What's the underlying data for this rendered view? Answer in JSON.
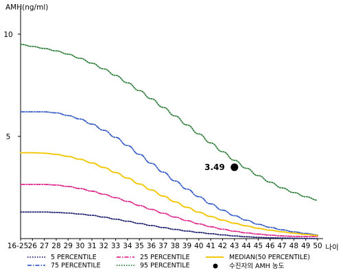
{
  "chart_data": {
    "type": "line",
    "ylabel": "AMH(ng/ml)",
    "xlabel": "나이",
    "x": [
      "16-25",
      "26",
      "27",
      "28",
      "29",
      "30",
      "31",
      "32",
      "33",
      "34",
      "35",
      "36",
      "37",
      "38",
      "39",
      "40",
      "41",
      "42",
      "43",
      "44",
      "45",
      "46",
      "47",
      "48",
      "49",
      "50"
    ],
    "ylim": [
      0,
      11
    ],
    "y_ticks": [
      {
        "value": 5,
        "label": "5"
      },
      {
        "value": 10,
        "label": "10"
      }
    ],
    "grid": false,
    "legend_position": "bottom",
    "series": [
      {
        "name": "5 PERCENTILE",
        "color": "#1b1f6e",
        "style": "dotted",
        "values": [
          1.3,
          1.3,
          1.3,
          1.28,
          1.25,
          1.2,
          1.14,
          1.05,
          0.95,
          0.85,
          0.74,
          0.64,
          0.54,
          0.45,
          0.37,
          0.3,
          0.24,
          0.18,
          0.13,
          0.09,
          0.06,
          0.04,
          0.03,
          0.02,
          0.01,
          0.0
        ]
      },
      {
        "name": "75 PERCENTILE",
        "color": "#3a5ec8",
        "style": "dashdot",
        "values": [
          6.2,
          6.2,
          6.2,
          6.15,
          6.02,
          5.85,
          5.6,
          5.3,
          4.95,
          4.55,
          4.12,
          3.68,
          3.25,
          2.82,
          2.42,
          2.05,
          1.7,
          1.39,
          1.12,
          0.9,
          0.7,
          0.55,
          0.43,
          0.33,
          0.25,
          0.18
        ]
      },
      {
        "name": "25 PERCENTILE",
        "color": "#e0298d",
        "style": "dashdot",
        "values": [
          2.65,
          2.65,
          2.65,
          2.62,
          2.55,
          2.45,
          2.32,
          2.17,
          2.0,
          1.82,
          1.62,
          1.43,
          1.24,
          1.05,
          0.88,
          0.72,
          0.58,
          0.46,
          0.36,
          0.28,
          0.22,
          0.17,
          0.13,
          0.11,
          0.1,
          0.1
        ]
      },
      {
        "name": "95 PERCENTILE",
        "color": "#2f7f3a",
        "style": "dotted",
        "values": [
          9.5,
          9.4,
          9.3,
          9.18,
          9.02,
          8.82,
          8.58,
          8.3,
          7.98,
          7.62,
          7.24,
          6.84,
          6.42,
          6.0,
          5.56,
          5.12,
          4.68,
          4.25,
          3.83,
          3.44,
          3.08,
          2.76,
          2.48,
          2.25,
          2.05,
          1.88
        ]
      },
      {
        "name": "MEDIAN(50 PERCENTILE)",
        "color": "#f2c80f",
        "style": "solid",
        "values": [
          4.2,
          4.2,
          4.18,
          4.12,
          4.02,
          3.88,
          3.7,
          3.48,
          3.23,
          2.96,
          2.67,
          2.38,
          2.08,
          1.8,
          1.53,
          1.29,
          1.08,
          0.9,
          0.75,
          0.62,
          0.5,
          0.41,
          0.33,
          0.26,
          0.2,
          0.15
        ]
      }
    ],
    "markers": [
      {
        "name": "수진자의 AMH 농도",
        "x": "43",
        "value": 3.49,
        "label": "3.49",
        "color": "#000000"
      }
    ]
  }
}
